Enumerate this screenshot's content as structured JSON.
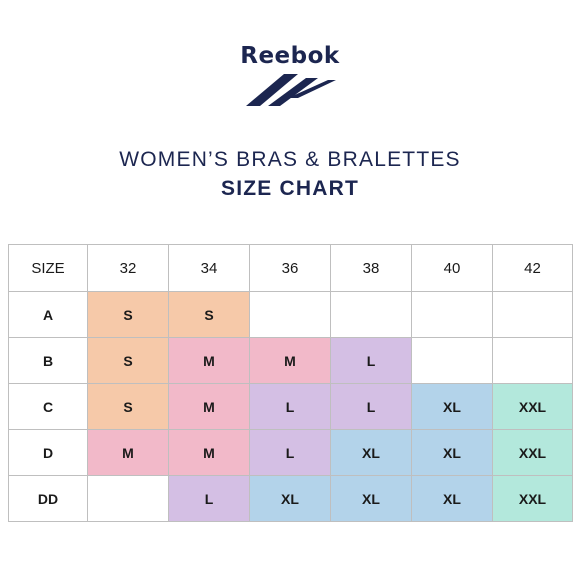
{
  "brand": {
    "name": "Reebok",
    "color": "#1c2650"
  },
  "heading": {
    "line1": "WOMEN’S BRAS & BRALETTES",
    "line2": "SIZE CHART"
  },
  "size_colors": {
    "S": "#f6c9a9",
    "M": "#f2b9c9",
    "L": "#d4bfe4",
    "XL": "#b3d3ea",
    "XXL": "#b3e8dc",
    "empty": "#ffffff"
  },
  "table": {
    "corner_label": "SIZE",
    "band_sizes": [
      "32",
      "34",
      "36",
      "38",
      "40",
      "42"
    ],
    "rows": [
      {
        "cup": "A",
        "sizes": [
          "S",
          "S",
          "",
          "",
          "",
          ""
        ]
      },
      {
        "cup": "B",
        "sizes": [
          "S",
          "M",
          "M",
          "L",
          "",
          ""
        ]
      },
      {
        "cup": "C",
        "sizes": [
          "S",
          "M",
          "L",
          "L",
          "XL",
          "XXL"
        ]
      },
      {
        "cup": "D",
        "sizes": [
          "M",
          "M",
          "L",
          "XL",
          "XL",
          "XXL"
        ]
      },
      {
        "cup": "DD",
        "sizes": [
          "",
          "L",
          "XL",
          "XL",
          "XL",
          "XXL"
        ]
      }
    ]
  }
}
